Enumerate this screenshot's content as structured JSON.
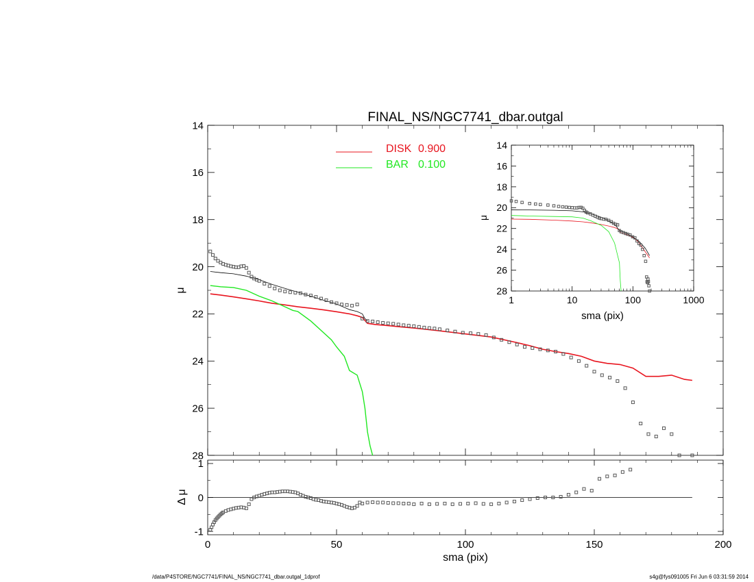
{
  "footer": {
    "left": "/data/P4STORE/NGC7741/FINAL_NS/NGC7741_dbar.outgal_1dprof",
    "right": "s4g@fys091005  Fri Jun  6 03:31:59 2014"
  },
  "colors": {
    "disk": "#e8141e",
    "bar": "#1fe81f",
    "model": "#000000",
    "data": "#555555"
  },
  "chart_data": [
    {
      "id": "main",
      "type": "line",
      "title": "FINAL_NS/NGC7741_dbar.outgal",
      "xlabel": "",
      "ylabel": "μ",
      "xlim": [
        0,
        200
      ],
      "ylim": [
        28,
        14
      ],
      "yticks": [
        "14",
        "16",
        "18",
        "20",
        "22",
        "24",
        "26",
        "28"
      ],
      "xticks": [],
      "legend": [
        {
          "name": "DISK",
          "value": "0.900",
          "color": "#e8141e"
        },
        {
          "name": "BAR",
          "value": "0.100",
          "color": "#1fe81f"
        }
      ],
      "legend_position": "top-center",
      "series": [
        {
          "name": "DISK",
          "color": "#e8141e",
          "x": [
            1,
            5,
            10,
            15,
            20,
            25,
            30,
            35,
            40,
            45,
            50,
            55,
            58,
            60,
            62,
            65,
            70,
            75,
            80,
            90,
            100,
            110,
            120,
            125,
            130,
            135,
            140,
            145,
            150,
            155,
            160,
            165,
            170,
            175,
            180,
            185,
            188
          ],
          "y": [
            21.15,
            21.2,
            21.28,
            21.36,
            21.45,
            21.55,
            21.62,
            21.7,
            21.76,
            21.83,
            21.91,
            22.0,
            22.08,
            22.15,
            22.4,
            22.45,
            22.5,
            22.55,
            22.6,
            22.72,
            22.85,
            22.98,
            23.22,
            23.35,
            23.5,
            23.6,
            23.68,
            23.8,
            24.0,
            24.1,
            24.15,
            24.3,
            24.65,
            24.65,
            24.6,
            24.78,
            24.82
          ]
        },
        {
          "name": "BAR",
          "color": "#1fe81f",
          "x": [
            1,
            5,
            10,
            15,
            20,
            25,
            30,
            33,
            35,
            40,
            45,
            48,
            50,
            53,
            55,
            58,
            60,
            61,
            62,
            63,
            64
          ],
          "y": [
            20.8,
            20.85,
            20.88,
            21.0,
            21.25,
            21.45,
            21.7,
            21.85,
            21.9,
            22.3,
            22.8,
            23.1,
            23.4,
            23.8,
            24.4,
            24.6,
            25.3,
            26.0,
            27.0,
            27.6,
            28.0
          ]
        },
        {
          "name": "",
          "color": "#000000",
          "x": [
            1,
            5,
            10,
            15,
            20,
            25,
            30,
            35,
            40,
            45,
            50,
            55,
            58,
            60,
            61,
            62
          ],
          "y": [
            20.2,
            20.25,
            20.3,
            20.4,
            20.55,
            20.75,
            20.92,
            21.08,
            21.25,
            21.42,
            21.58,
            21.82,
            21.9,
            22.0,
            22.2,
            22.3
          ]
        },
        {
          "name": "",
          "color": "#555555",
          "style": "squares",
          "x": [
            1,
            2,
            3,
            4,
            5,
            6,
            7,
            8,
            9,
            10,
            11,
            12,
            13,
            14,
            15,
            16,
            17,
            18,
            19,
            20,
            22,
            24,
            26,
            28,
            30,
            32,
            34,
            36,
            38,
            40,
            42,
            44,
            46,
            48,
            50,
            52,
            54,
            56,
            58,
            60,
            62,
            64,
            66,
            68,
            70,
            72,
            74,
            76,
            78,
            80,
            82,
            84,
            86,
            88,
            90,
            93,
            96,
            99,
            102,
            105,
            108,
            111,
            114,
            117,
            120,
            123,
            126,
            129,
            132,
            135,
            138,
            141,
            144,
            147,
            150,
            153,
            156,
            159,
            162,
            165,
            168,
            171,
            174,
            177,
            180,
            183,
            188
          ],
          "y": [
            19.35,
            19.5,
            19.65,
            19.75,
            19.82,
            19.88,
            19.92,
            19.95,
            19.98,
            20.0,
            20.02,
            20.02,
            19.98,
            19.97,
            20.05,
            20.25,
            20.42,
            20.5,
            20.55,
            20.6,
            20.72,
            20.82,
            20.92,
            21.0,
            21.05,
            21.08,
            21.1,
            21.12,
            21.18,
            21.22,
            21.28,
            21.35,
            21.42,
            21.5,
            21.55,
            21.6,
            21.62,
            21.65,
            21.6,
            22.2,
            22.3,
            22.32,
            22.35,
            22.38,
            22.4,
            22.42,
            22.45,
            22.48,
            22.5,
            22.52,
            22.55,
            22.58,
            22.6,
            22.62,
            22.65,
            22.7,
            22.75,
            22.8,
            22.82,
            22.85,
            22.9,
            23.0,
            23.1,
            23.2,
            23.3,
            23.4,
            23.45,
            23.5,
            23.55,
            23.6,
            23.7,
            23.85,
            24.0,
            24.2,
            24.45,
            24.6,
            24.7,
            24.85,
            25.15,
            25.75,
            26.65,
            27.1,
            27.2,
            26.85,
            27.1,
            28.0,
            28.0
          ]
        }
      ]
    },
    {
      "id": "residual",
      "type": "scatter",
      "title": "",
      "xlabel": "sma (pix)",
      "ylabel": "Δ μ",
      "xlim": [
        0,
        200
      ],
      "ylim": [
        -1.1,
        1.1
      ],
      "xticks": [
        "0",
        "50",
        "100",
        "150",
        "200"
      ],
      "yticks": [
        "1",
        "0",
        "-1"
      ],
      "zero_line": true,
      "series": [
        {
          "name": "",
          "color": "#555555",
          "style": "squares",
          "x": [
            1,
            1.5,
            2,
            2.5,
            3,
            3.5,
            4,
            4.5,
            5,
            5.5,
            6,
            7,
            8,
            9,
            10,
            11,
            12,
            13,
            14,
            15,
            16,
            17,
            18,
            19,
            20,
            21,
            22,
            23,
            24,
            25,
            26,
            27,
            28,
            29,
            30,
            31,
            32,
            33,
            34,
            35,
            36,
            37,
            38,
            39,
            40,
            41,
            42,
            43,
            44,
            45,
            46,
            47,
            48,
            49,
            50,
            51,
            52,
            53,
            54,
            55,
            56,
            57,
            58,
            59,
            60,
            62,
            64,
            66,
            68,
            70,
            72,
            74,
            76,
            78,
            80,
            83,
            86,
            89,
            92,
            95,
            98,
            101,
            104,
            107,
            110,
            113,
            116,
            119,
            122,
            125,
            128,
            131,
            134,
            137,
            140,
            143,
            146,
            149,
            152,
            155,
            158,
            161,
            164
          ],
          "y": [
            -0.95,
            -0.88,
            -0.8,
            -0.73,
            -0.67,
            -0.62,
            -0.58,
            -0.54,
            -0.5,
            -0.47,
            -0.44,
            -0.4,
            -0.37,
            -0.35,
            -0.33,
            -0.31,
            -0.3,
            -0.29,
            -0.3,
            -0.32,
            -0.2,
            -0.05,
            0.0,
            0.03,
            0.05,
            0.08,
            0.1,
            0.12,
            0.14,
            0.15,
            0.15,
            0.16,
            0.17,
            0.18,
            0.18,
            0.18,
            0.17,
            0.16,
            0.15,
            0.12,
            0.08,
            0.05,
            0.02,
            0.0,
            -0.02,
            -0.05,
            -0.07,
            -0.08,
            -0.1,
            -0.12,
            -0.13,
            -0.14,
            -0.15,
            -0.16,
            -0.18,
            -0.2,
            -0.22,
            -0.25,
            -0.28,
            -0.3,
            -0.32,
            -0.3,
            -0.25,
            -0.15,
            -0.18,
            -0.15,
            -0.14,
            -0.15,
            -0.15,
            -0.16,
            -0.17,
            -0.17,
            -0.18,
            -0.18,
            -0.2,
            -0.18,
            -0.2,
            -0.19,
            -0.18,
            -0.2,
            -0.19,
            -0.18,
            -0.17,
            -0.19,
            -0.2,
            -0.18,
            -0.15,
            -0.12,
            -0.08,
            -0.05,
            -0.02,
            0.0,
            0.0,
            0.02,
            0.08,
            0.15,
            0.25,
            0.2,
            0.55,
            0.62,
            0.65,
            0.75,
            0.82
          ]
        }
      ]
    },
    {
      "id": "inset",
      "type": "line",
      "title": "",
      "xlabel": "sma (pix)",
      "ylabel": "μ",
      "xscale": "log",
      "xlim": [
        1,
        1000
      ],
      "ylim": [
        28,
        14
      ],
      "xticks": [
        "1",
        "10",
        "100",
        "1000"
      ],
      "yticks": [
        "14",
        "16",
        "18",
        "20",
        "22",
        "24",
        "26",
        "28"
      ],
      "series": [
        {
          "name": "DISK",
          "color": "#e8141e",
          "x": [
            1,
            2,
            5,
            10,
            15,
            20,
            30,
            40,
            50,
            58,
            60,
            62,
            80,
            100,
            120,
            150,
            188
          ],
          "y": [
            21.1,
            21.12,
            21.2,
            21.28,
            21.36,
            21.45,
            21.62,
            21.76,
            21.91,
            22.08,
            22.15,
            22.4,
            22.6,
            22.85,
            23.22,
            24.0,
            24.82
          ]
        },
        {
          "name": "BAR",
          "color": "#1fe81f",
          "x": [
            1,
            2,
            5,
            10,
            15,
            20,
            30,
            40,
            50,
            55,
            60,
            62,
            64
          ],
          "y": [
            20.75,
            20.8,
            20.85,
            20.88,
            21.0,
            21.25,
            21.7,
            22.3,
            23.4,
            24.4,
            25.3,
            27.0,
            28.0
          ]
        },
        {
          "name": "",
          "color": "#000000",
          "x": [
            1,
            2,
            5,
            10,
            15,
            20,
            30,
            40,
            50,
            60,
            80,
            100,
            130,
            160,
            188
          ],
          "y": [
            20.2,
            20.22,
            20.25,
            20.3,
            20.4,
            20.55,
            20.92,
            21.25,
            21.58,
            22.2,
            22.5,
            22.8,
            23.3,
            23.9,
            24.6
          ]
        },
        {
          "name": "",
          "color": "#555555",
          "style": "squares",
          "x": [
            1,
            1.2,
            1.5,
            2,
            2.5,
            3,
            4,
            5,
            6,
            7,
            8,
            9,
            10,
            11,
            12,
            13,
            14,
            15,
            16,
            17,
            18,
            20,
            22,
            24,
            26,
            28,
            30,
            33,
            36,
            40,
            44,
            48,
            52,
            56,
            60,
            64,
            70,
            76,
            82,
            90,
            99,
            108,
            117,
            126,
            135,
            144,
            153,
            162,
            168,
            171,
            174,
            177,
            180,
            183,
            188
          ],
          "y": [
            19.35,
            19.4,
            19.5,
            19.6,
            19.65,
            19.7,
            19.75,
            19.82,
            19.88,
            19.92,
            19.95,
            19.98,
            20.0,
            20.02,
            20.02,
            19.98,
            19.97,
            20.05,
            20.25,
            20.42,
            20.5,
            20.6,
            20.72,
            20.82,
            20.92,
            21.0,
            21.05,
            21.1,
            21.12,
            21.22,
            21.35,
            21.5,
            21.6,
            21.65,
            22.2,
            22.32,
            22.4,
            22.48,
            22.55,
            22.62,
            22.8,
            22.9,
            23.2,
            23.45,
            23.6,
            24.0,
            24.6,
            25.15,
            26.65,
            27.1,
            27.2,
            26.85,
            27.1,
            27.5,
            28.0
          ]
        }
      ]
    }
  ]
}
